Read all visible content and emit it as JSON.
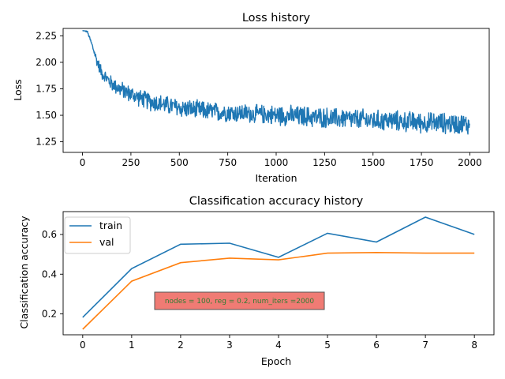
{
  "chart_data": [
    {
      "type": "line",
      "title": "Loss history",
      "xlabel": "Iteration",
      "ylabel": "Loss",
      "xlim": [
        -100,
        2100
      ],
      "ylim": [
        1.15,
        2.32
      ],
      "xticks": [
        "0",
        "250",
        "500",
        "750",
        "1000",
        "1250",
        "1500",
        "1750",
        "2000"
      ],
      "yticks": [
        "1.25",
        "1.50",
        "1.75",
        "2.00",
        "2.25"
      ],
      "grid": false,
      "color": "#1f77b4",
      "series": [
        {
          "x": [
            0,
            25,
            50,
            75,
            100,
            150,
            200,
            250,
            300,
            350,
            400,
            450,
            500,
            550,
            600,
            650,
            700,
            750,
            800,
            850,
            900,
            950,
            1000,
            1050,
            1100,
            1150,
            1200,
            1250,
            1300,
            1350,
            1400,
            1450,
            1500,
            1550,
            1600,
            1650,
            1700,
            1750,
            1800,
            1850,
            1900,
            1950,
            2000
          ],
          "values": [
            2.3,
            2.29,
            2.16,
            2.01,
            1.9,
            1.8,
            1.74,
            1.7,
            1.66,
            1.63,
            1.61,
            1.59,
            1.57,
            1.56,
            1.55,
            1.54,
            1.53,
            1.53,
            1.52,
            1.52,
            1.51,
            1.51,
            1.5,
            1.5,
            1.49,
            1.49,
            1.48,
            1.48,
            1.47,
            1.47,
            1.46,
            1.46,
            1.45,
            1.45,
            1.45,
            1.44,
            1.44,
            1.43,
            1.43,
            1.43,
            1.42,
            1.42,
            1.41
          ],
          "noise": [
            0.0,
            0.01,
            0.03,
            0.06,
            0.07,
            0.08,
            0.09,
            0.09,
            0.09,
            0.1,
            0.1,
            0.1,
            0.1,
            0.1,
            0.1,
            0.1,
            0.1,
            0.1,
            0.1,
            0.1,
            0.1,
            0.1,
            0.11,
            0.11,
            0.11,
            0.11,
            0.11,
            0.11,
            0.11,
            0.11,
            0.11,
            0.11,
            0.11,
            0.11,
            0.11,
            0.11,
            0.11,
            0.11,
            0.11,
            0.11,
            0.11,
            0.11,
            0.11
          ]
        }
      ]
    },
    {
      "type": "line",
      "title": "Classification accuracy history",
      "xlabel": "Epoch",
      "ylabel": "Classification accuracy",
      "xlim": [
        -0.4,
        8.4
      ],
      "ylim": [
        0.095,
        0.715
      ],
      "xticks": [
        "0",
        "1",
        "2",
        "3",
        "4",
        "5",
        "6",
        "7",
        "8"
      ],
      "yticks": [
        "0.2",
        "0.4",
        "0.6"
      ],
      "grid": false,
      "legend": "upper left",
      "categories": [
        0,
        1,
        2,
        3,
        4,
        5,
        6,
        7,
        8
      ],
      "series": [
        {
          "name": "train",
          "color": "#1f77b4",
          "values": [
            0.183,
            0.428,
            0.551,
            0.556,
            0.485,
            0.606,
            0.562,
            0.687,
            0.6
          ]
        },
        {
          "name": "val",
          "color": "#ff7f0e",
          "values": [
            0.123,
            0.365,
            0.458,
            0.481,
            0.472,
            0.506,
            0.509,
            0.506,
            0.506
          ]
        }
      ],
      "annotation": {
        "text": "nodes = 100, reg = 0.2, num_iters =2000",
        "color": "#f07b74",
        "text_color": "#2e7d32"
      }
    }
  ]
}
